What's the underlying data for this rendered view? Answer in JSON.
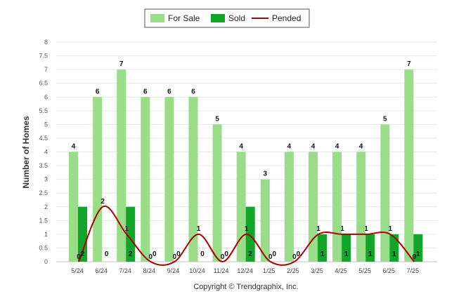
{
  "chart_data": {
    "type": "bar",
    "categories": [
      "5/24",
      "6/24",
      "7/24",
      "8/24",
      "9/24",
      "10/24",
      "11/24",
      "12/24",
      "1/25",
      "2/25",
      "3/25",
      "4/25",
      "5/25",
      "6/25",
      "7/25"
    ],
    "series": [
      {
        "name": "For Sale",
        "type": "bar",
        "color": "#99dd88",
        "values": [
          4,
          6,
          7,
          6,
          6,
          6,
          5,
          4,
          3,
          4,
          4,
          4,
          4,
          5,
          7
        ]
      },
      {
        "name": "Sold",
        "type": "bar",
        "color": "#11a52a",
        "values": [
          2,
          0,
          2,
          0,
          0,
          0,
          0,
          2,
          0,
          0,
          1,
          1,
          1,
          1,
          1
        ]
      },
      {
        "name": "Pended",
        "type": "line",
        "color": "#aa0000",
        "smooth": true,
        "values": [
          0,
          2,
          1,
          0,
          0,
          1,
          0,
          1,
          0,
          0,
          1,
          1,
          1,
          1,
          0
        ]
      }
    ],
    "ylabel": "Number of Homes",
    "ylim": [
      0,
      8
    ],
    "yticks": [
      "0",
      "0.5",
      "1",
      "1.5",
      "2",
      "2.5",
      "3",
      "3.5",
      "4",
      "4.5",
      "5",
      "5.5",
      "6",
      "6.5",
      "7",
      "7.5",
      "8"
    ],
    "grid": true,
    "legend_position": "top-center",
    "copyright": "Copyright © Trendgraphix, Inc."
  }
}
